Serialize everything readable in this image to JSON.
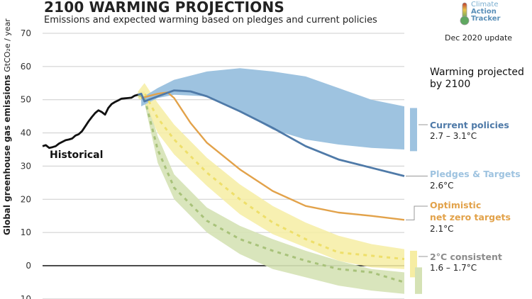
{
  "header": {
    "title": "2100 WARMING PROJECTIONS",
    "subtitle": "Emissions and expected warming based on pledges and current policies",
    "logo_lines": [
      "Climate",
      "Action",
      "Tracker"
    ],
    "update": "Dec 2020 update"
  },
  "legend": {
    "heading_line1": "Warming projected",
    "heading_line2": "by 2100",
    "items": [
      {
        "label": "Current policies",
        "value": "2.7 – 3.1°C",
        "color": "#4f7aa8"
      },
      {
        "label": "Pledges & Targets",
        "value": "2.6°C",
        "color": "#9ec3e0"
      },
      {
        "label_line1": "Optimistic",
        "label_line2": "net zero targets",
        "value": "2.1°C",
        "color": "#e2a24a"
      },
      {
        "label": "2°C consistent",
        "value": "1.6 – 1.7°C",
        "color": "#8c8c8c"
      }
    ]
  },
  "colors": {
    "historical": "#111111",
    "current_band": "#9ec3e0",
    "pledges_line": "#4f7aa8",
    "optimistic": "#e2a24a",
    "yellow_band": "#f6eda3",
    "yellow_dash": "#eedf6a",
    "green_band": "#d5e2b5",
    "green_dash": "#a8c27a",
    "grid": "#cccccc"
  },
  "chart_data": {
    "type": "area",
    "title": "2100 WARMING PROJECTIONS",
    "subtitle": "Emissions and expected warming based on pledges and current policies",
    "xlabel": "",
    "ylabel_bold": "Global greenhouse gas emissions",
    "ylabel_unit": "GtCO₂e / year",
    "ylim": [
      -10,
      70
    ],
    "xlim": [
      1990,
      2100
    ],
    "yticks": [
      70,
      60,
      50,
      40,
      30,
      20,
      10,
      0,
      -10
    ],
    "grid": true,
    "annotation": "Historical",
    "series": [
      {
        "name": "Historical",
        "kind": "line",
        "x": [
          1990,
          1991,
          1992,
          1993,
          1994,
          1995,
          1996,
          1997,
          1998,
          1999,
          2000,
          2001,
          2002,
          2003,
          2004,
          2005,
          2006,
          2007,
          2008,
          2009,
          2010,
          2011,
          2012,
          2013,
          2014,
          2015,
          2016,
          2017,
          2018,
          2019
        ],
        "y": [
          36.0,
          36.3,
          35.5,
          35.7,
          36.0,
          36.8,
          37.3,
          37.8,
          38.0,
          38.3,
          39.2,
          39.6,
          40.5,
          42.0,
          43.5,
          44.8,
          46.0,
          46.8,
          46.3,
          45.5,
          47.5,
          48.7,
          49.3,
          49.8,
          50.3,
          50.4,
          50.5,
          50.6,
          51.2,
          51.5
        ]
      },
      {
        "name": "Current policies (range)",
        "kind": "band",
        "x": [
          2020,
          2025,
          2030,
          2040,
          2050,
          2060,
          2070,
          2080,
          2090,
          2100
        ],
        "low": [
          48.0,
          50.5,
          51.5,
          51.0,
          46.5,
          41.0,
          38.0,
          36.5,
          35.5,
          35.0
        ],
        "high": [
          50.5,
          53.5,
          56.0,
          58.5,
          59.5,
          58.5,
          57.0,
          53.5,
          50.0,
          48.0
        ]
      },
      {
        "name": "Pledges & Targets",
        "kind": "line",
        "x": [
          2019,
          2020,
          2021,
          2025,
          2030,
          2035,
          2040,
          2050,
          2060,
          2070,
          2080,
          2090,
          2100
        ],
        "y": [
          51.5,
          51.8,
          49.5,
          51.0,
          52.8,
          52.5,
          51.0,
          46.5,
          41.5,
          36.0,
          32.0,
          29.5,
          27.0
        ]
      },
      {
        "name": "Optimistic net zero targets",
        "kind": "line",
        "x": [
          2020,
          2025,
          2028,
          2030,
          2035,
          2040,
          2050,
          2060,
          2070,
          2080,
          2090,
          2100
        ],
        "y": [
          50.5,
          51.8,
          52.2,
          50.5,
          43.0,
          37.0,
          29.0,
          22.5,
          18.0,
          16.0,
          15.0,
          13.8
        ]
      },
      {
        "name": "2°C consistent (upper, yellow)",
        "kind": "band_dashed",
        "x": [
          2019,
          2021,
          2025,
          2030,
          2040,
          2050,
          2060,
          2070,
          2080,
          2090,
          2100
        ],
        "low": [
          50.5,
          49.5,
          40.0,
          33.5,
          24.0,
          15.5,
          9.5,
          5.5,
          1.5,
          -0.5,
          -1.0
        ],
        "mid": [
          51.5,
          52.0,
          44.5,
          38.0,
          28.0,
          20.0,
          13.0,
          8.0,
          4.0,
          3.0,
          2.0
        ],
        "high": [
          52.5,
          55.0,
          49.0,
          42.5,
          32.5,
          24.5,
          18.0,
          13.0,
          9.0,
          6.5,
          5.0
        ]
      },
      {
        "name": "2°C consistent (lower, green)",
        "kind": "band_dashed",
        "x": [
          2019,
          2021,
          2025,
          2030,
          2040,
          2050,
          2060,
          2070,
          2080,
          2090,
          2100
        ],
        "low": [
          50.5,
          49.0,
          31.0,
          20.0,
          10.0,
          3.5,
          -1.0,
          -3.5,
          -6.0,
          -7.5,
          -8.5
        ],
        "mid": [
          51.5,
          50.5,
          35.0,
          23.5,
          13.5,
          8.0,
          4.5,
          1.5,
          -1.0,
          -2.0,
          -5.0
        ],
        "high": [
          52.5,
          52.5,
          39.0,
          27.5,
          17.5,
          12.0,
          8.0,
          4.5,
          1.5,
          -1.0,
          -2.0
        ]
      }
    ],
    "end_bars": [
      {
        "name": "Current policies",
        "low": 34.5,
        "high": 47.5,
        "temp": "2.7 – 3.1°C"
      },
      {
        "name": "2°C consistent yellow",
        "low": -3.5,
        "high": 4.5,
        "temp": "1.6 – 1.7°C"
      },
      {
        "name": "2°C consistent green",
        "low": -8.5,
        "high": -0.5,
        "temp": "1.6 – 1.7°C"
      }
    ]
  }
}
